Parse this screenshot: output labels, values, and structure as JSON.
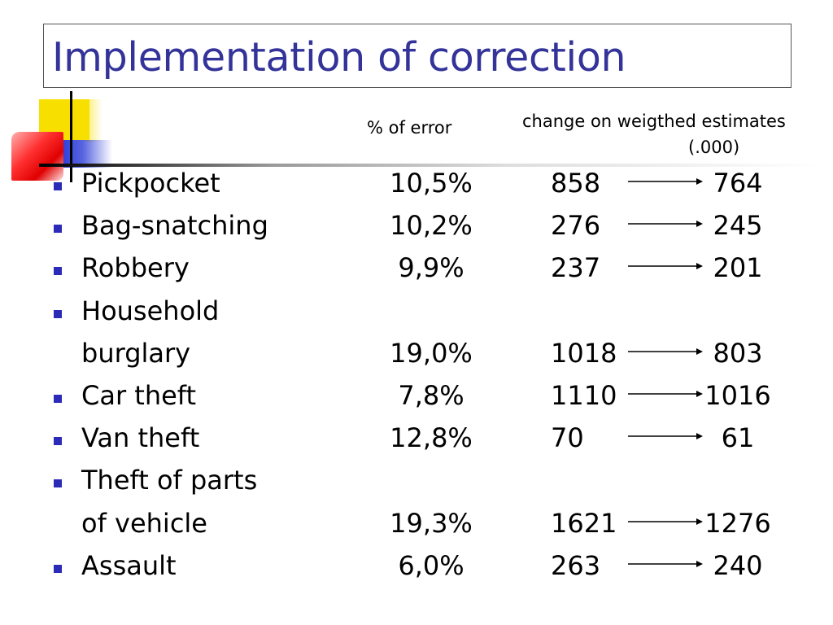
{
  "title": "Implementation of correction",
  "headers": {
    "error": "% of error",
    "change": "change on weigthed estimates",
    "unit": "(.000)"
  },
  "colors": {
    "title": "#333399",
    "bullet": "#2b2bb8"
  },
  "rows": [
    {
      "label": "Pickpocket",
      "pct": "10,5%",
      "before": "858",
      "after": "764",
      "bullet": true
    },
    {
      "label": "Bag-snatching",
      "pct": "10,2%",
      "before": "276",
      "after": "245",
      "bullet": true
    },
    {
      "label": "Robbery",
      "pct": "9,9%",
      "before": "237",
      "after": "201",
      "bullet": true
    },
    {
      "label": "Household",
      "pct": "",
      "before": "",
      "after": "",
      "bullet": true
    },
    {
      "label": "burglary",
      "pct": "19,0%",
      "before": "1018",
      "after": "803",
      "bullet": false
    },
    {
      "label": "Car theft",
      "pct": "7,8%",
      "before": "1110",
      "after": "1016",
      "bullet": true
    },
    {
      "label": "Van theft",
      "pct": "12,8%",
      "before": "70",
      "after": "61",
      "bullet": true
    },
    {
      "label": "Theft of parts",
      "pct": "",
      "before": "",
      "after": "",
      "bullet": true
    },
    {
      "label": "of vehicle",
      "pct": "19,3%",
      "before": "1621",
      "after": "1276",
      "bullet": false
    },
    {
      "label": "Assault",
      "pct": "6,0%",
      "before": "263",
      "after": "240",
      "bullet": true
    }
  ]
}
